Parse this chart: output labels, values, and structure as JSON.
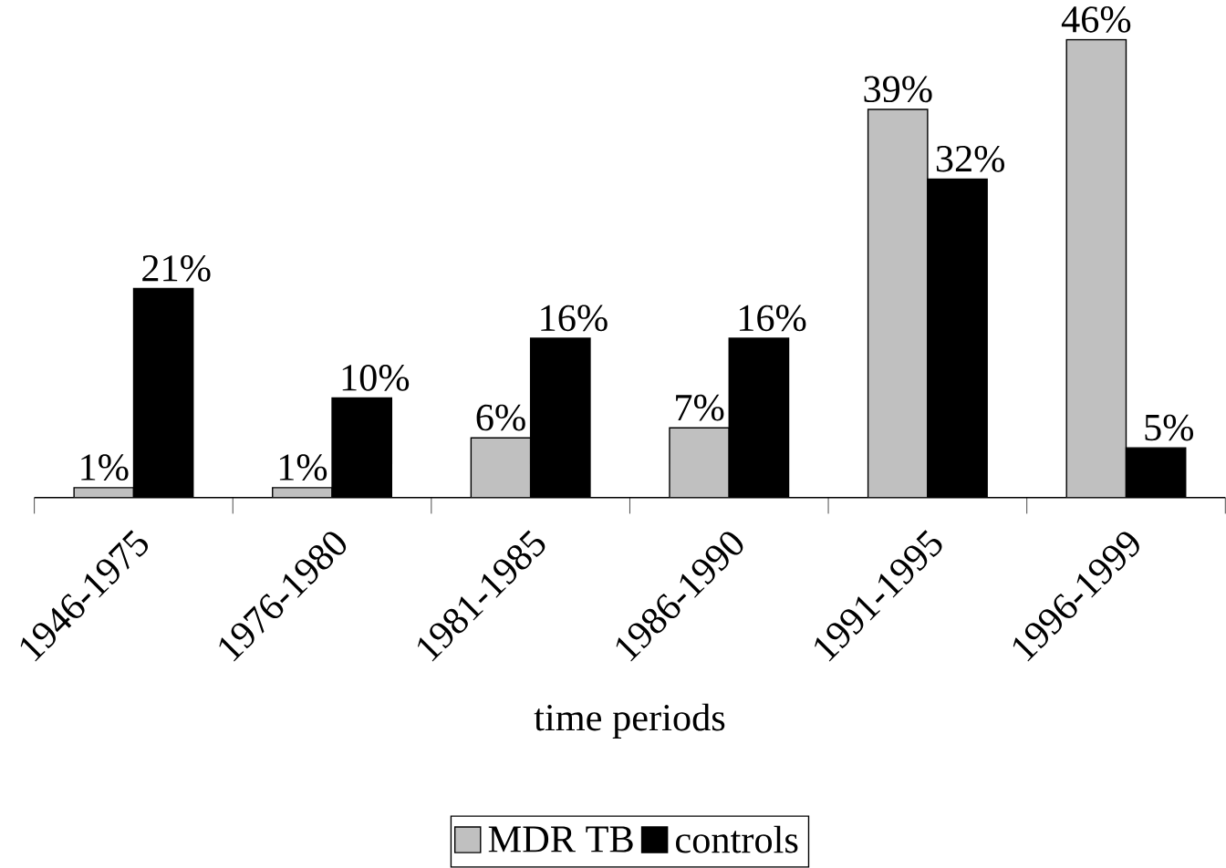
{
  "chart_data": {
    "type": "bar",
    "xlabel": "time periods",
    "categories": [
      "1946-1975",
      "1976-1980",
      "1981-1985",
      "1986-1990",
      "1991-1995",
      "1996-1999"
    ],
    "series": [
      {
        "name": "MDR TB",
        "color": "#c0c0c0",
        "values": [
          1,
          1,
          6,
          7,
          39,
          46
        ],
        "value_labels": [
          "1%",
          "1%",
          "6%",
          "7%",
          "39%",
          "46%"
        ]
      },
      {
        "name": "controls",
        "color": "#000000",
        "values": [
          21,
          10,
          16,
          16,
          32,
          5
        ],
        "value_labels": [
          "21%",
          "10%",
          "16%",
          "16%",
          "32%",
          "5%"
        ]
      }
    ],
    "legend": "bottom"
  }
}
